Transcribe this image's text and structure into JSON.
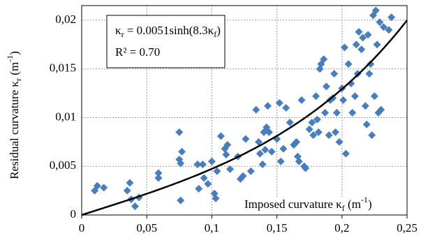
{
  "chart_data": {
    "type": "scatter",
    "ylabel": [
      "Residual curvature κ",
      {
        "text": "r",
        "script": "sub"
      },
      " (m",
      {
        "text": "-1",
        "script": "sup"
      },
      ")"
    ],
    "xlabel": [
      "Imposed curvature κ",
      {
        "text": "f",
        "script": "sub"
      },
      " (m",
      {
        "text": "-1",
        "script": "sup"
      },
      ")"
    ],
    "equation": [
      "κ",
      {
        "text": "r",
        "script": "sub"
      },
      " = 0.0051sinh(8.3κ",
      {
        "text": "f",
        "script": "sub"
      },
      ")"
    ],
    "r2": "R² = 0.70",
    "fit": {
      "a": 0.0051,
      "b": 8.3
    },
    "color": "#4a7ebb",
    "grid": true,
    "xlim": [
      0,
      0.25
    ],
    "ylim": [
      0,
      0.0215
    ],
    "xticks": [
      0,
      {
        "value": 0.05,
        "label": "0,05"
      },
      {
        "value": 0.1,
        "label": "0,1"
      },
      {
        "value": 0.15,
        "label": "0,15"
      },
      {
        "value": 0.2,
        "label": "0,2"
      },
      {
        "value": 0.25,
        "label": "0,25"
      }
    ],
    "yticks": [
      0,
      {
        "value": 0.005,
        "label": "0,005"
      },
      {
        "value": 0.01,
        "label": "0,01"
      },
      {
        "value": 0.015,
        "label": "0,015"
      },
      {
        "value": 0.02,
        "label": "0,02"
      }
    ],
    "x": [
      0.01,
      0.012,
      0.017,
      0.035,
      0.037,
      0.038,
      0.041,
      0.044,
      0.059,
      0.059,
      0.075,
      0.075,
      0.076,
      0.077,
      0.076,
      0.089,
      0.09,
      0.093,
      0.094,
      0.097,
      0.1,
      0.102,
      0.103,
      0.104,
      0.107,
      0.11,
      0.111,
      0.112,
      0.114,
      0.12,
      0.122,
      0.124,
      0.126,
      0.13,
      0.134,
      0.136,
      0.137,
      0.139,
      0.14,
      0.141,
      0.142,
      0.143,
      0.144,
      0.146,
      0.15,
      0.152,
      0.153,
      0.155,
      0.157,
      0.16,
      0.163,
      0.165,
      0.166,
      0.167,
      0.169,
      0.171,
      0.172,
      0.175,
      0.177,
      0.178,
      0.18,
      0.181,
      0.182,
      0.183,
      0.184,
      0.186,
      0.187,
      0.188,
      0.19,
      0.191,
      0.193,
      0.194,
      0.195,
      0.196,
      0.198,
      0.2,
      0.201,
      0.202,
      0.203,
      0.205,
      0.207,
      0.208,
      0.21,
      0.211,
      0.212,
      0.213,
      0.215,
      0.216,
      0.218,
      0.219,
      0.22,
      0.221,
      0.222,
      0.223,
      0.224,
      0.225,
      0.226,
      0.227,
      0.228,
      0.229,
      0.23,
      0.232,
      0.236,
      0.238
    ],
    "values": [
      0.0025,
      0.003,
      0.0028,
      0.0025,
      0.0033,
      0.0016,
      0.0009,
      0.0018,
      0.0043,
      0.0038,
      0.0085,
      0.0057,
      0.0053,
      0.0065,
      0.0015,
      0.0052,
      0.0027,
      0.0052,
      0.0038,
      0.0032,
      0.0055,
      0.0022,
      0.0017,
      0.0045,
      0.0081,
      0.0068,
      0.0062,
      0.0072,
      0.0047,
      0.006,
      0.0037,
      0.004,
      0.0078,
      0.0045,
      0.0108,
      0.0075,
      0.0063,
      0.0052,
      0.0085,
      0.0067,
      0.009,
      0.0112,
      0.0085,
      0.0065,
      0.0078,
      0.0115,
      0.0055,
      0.0068,
      0.011,
      0.0095,
      0.0072,
      0.0075,
      0.006,
      0.0055,
      0.0118,
      0.005,
      0.0048,
      0.0088,
      0.0095,
      0.0082,
      0.0122,
      0.0098,
      0.0085,
      0.015,
      0.0155,
      0.016,
      0.0105,
      0.0132,
      0.0082,
      0.0118,
      0.012,
      0.0145,
      0.0085,
      0.0105,
      0.0075,
      0.013,
      0.0118,
      0.0172,
      0.0063,
      0.0155,
      0.0135,
      0.0105,
      0.0122,
      0.0175,
      0.0145,
      0.0188,
      0.017,
      0.0182,
      0.0112,
      0.0093,
      0.0185,
      0.0145,
      0.0155,
      0.0082,
      0.0205,
      0.0122,
      0.021,
      0.0175,
      0.0105,
      0.0198,
      0.0108,
      0.0193,
      0.019,
      0.0203
    ]
  }
}
